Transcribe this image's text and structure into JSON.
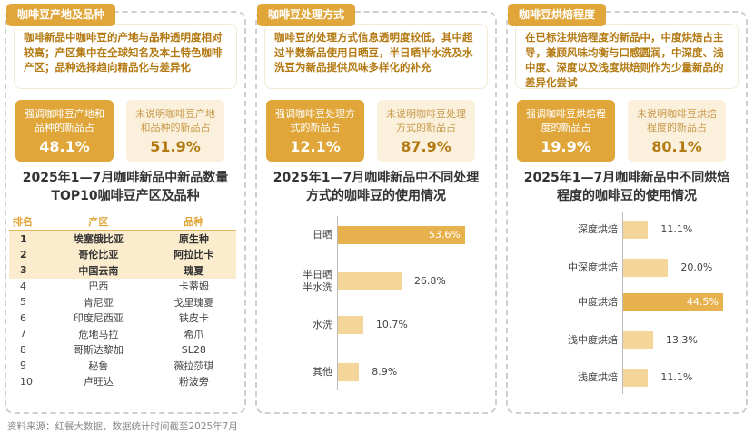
{
  "panels": [
    {
      "tag": "咖啡豆产地及品种",
      "desc": "咖啡新品中咖啡豆的产地与品种透明度相对较高；产区集中在全球知名及本土特色咖啡产区；品种选择趋向精品化与差异化",
      "stat_on": {
        "label": "强调咖啡豆产地和品种的新品占",
        "value": "48.1%"
      },
      "stat_off": {
        "label": "未说明咖啡豆产地和品种的新品占",
        "value": "51.9%"
      },
      "title": "2025年1—7月咖啡新品中新品数量TOP10咖啡豆产区及品种"
    },
    {
      "tag": "咖啡豆处理方式",
      "desc": "咖啡豆的处理方式信息透明度较低，其中超过半数新品使用日晒豆，半日晒半水洗及水洗豆为新品提供风味多样化的补充",
      "stat_on": {
        "label": "强调咖啡豆处理方式的新品占",
        "value": "12.1%"
      },
      "stat_off": {
        "label": "未说明咖啡豆处理方式的新品占",
        "value": "87.9%"
      },
      "title": "2025年1—7月咖啡新品中不同处理方式的咖啡豆的使用情况"
    },
    {
      "tag": "咖啡豆烘焙程度",
      "desc": "在已标注烘焙程度的新品中，中度烘焙占主导，兼顾风味均衡与口感圆润，中深度、浅中度、深度以及浅度烘焙则作为少量新品的差异化尝试",
      "stat_on": {
        "label": "强调咖啡豆烘焙程度的新品占",
        "value": "19.9%"
      },
      "stat_off": {
        "label": "未说明咖啡豆烘焙程度的新品占",
        "value": "80.1%"
      },
      "title": "2025年1—7月咖啡新品中不同烘焙程度的咖啡豆的使用情况"
    }
  ],
  "table": {
    "headers": [
      "排名",
      "产区",
      "品种"
    ],
    "rows": [
      [
        "1",
        "埃塞俄比亚",
        "原生种"
      ],
      [
        "2",
        "哥伦比亚",
        "阿拉比卡"
      ],
      [
        "3",
        "中国云南",
        "瑰夏"
      ],
      [
        "4",
        "巴西",
        "卡蒂姆"
      ],
      [
        "5",
        "肯尼亚",
        "戈里瑰夏"
      ],
      [
        "6",
        "印度尼西亚",
        "铁皮卡"
      ],
      [
        "7",
        "危地马拉",
        "希爪"
      ],
      [
        "8",
        "哥斯达黎加",
        "SL28"
      ],
      [
        "9",
        "秘鲁",
        "薇拉莎琪"
      ],
      [
        "10",
        "卢旺达",
        "粉波旁"
      ]
    ]
  },
  "chart_data": [
    {
      "type": "bar",
      "orientation": "horizontal",
      "title": "2025年1—7月咖啡新品中不同处理方式的咖啡豆的使用情况",
      "categories": [
        "日晒",
        "半日晒\n半水洗",
        "水洗",
        "其他"
      ],
      "values": [
        53.6,
        26.8,
        10.7,
        8.9
      ],
      "labels": [
        "53.6%",
        "26.8%",
        "10.7%",
        "8.9%"
      ],
      "unit": "%"
    },
    {
      "type": "bar",
      "orientation": "horizontal",
      "title": "2025年1—7月咖啡新品中不同烘焙程度的咖啡豆的使用情况",
      "categories": [
        "深度烘焙",
        "中深度烘焙",
        "中度烘焙",
        "浅中度烘焙",
        "浅度烘焙"
      ],
      "values": [
        11.1,
        20.0,
        44.5,
        13.3,
        11.1
      ],
      "labels": [
        "11.1%",
        "20.0%",
        "44.5%",
        "13.3%",
        "11.1%"
      ],
      "unit": "%"
    }
  ],
  "source": "资料来源：红餐大数据，数据统计时间截至2025年7月",
  "colors": {
    "accent": "#e0a63a",
    "light": "#fbf0dc",
    "bar": "#f4d59a",
    "bar_max": "#e7b24e"
  }
}
